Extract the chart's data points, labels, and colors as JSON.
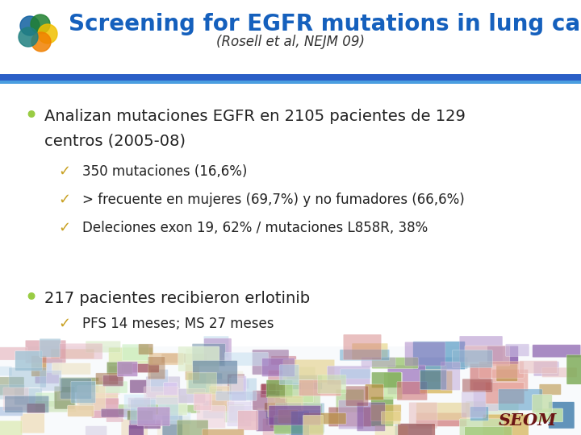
{
  "title": "Screening for EGFR mutations in lung cancer",
  "subtitle": "(Rosell et al, NEJM 09)",
  "title_color": "#1560BD",
  "subtitle_color": "#333333",
  "bg_color": "#FFFFFF",
  "separator_color": "#2B5FC7",
  "separator_color2": "#4A9EE0",
  "bullet_color": "#99CC44",
  "check_color": "#C8A020",
  "bullet1_line1": "Analizan mutaciones EGFR en 2105 pacientes de 129",
  "bullet1_line2": "centros (2005-08)",
  "sub1a": "350 mutaciones (16,6%)",
  "sub1b": "> frecuente en mujeres (69,7%) y no fumadores (66,6%)",
  "sub1c": "Deleciones exon 19, 62% / mutaciones L858R, 38%",
  "bullet2": "217 pacientes recibieron erlotinib",
  "sub2a": "PFS 14 meses; MS 27 meses",
  "text_color": "#222222",
  "font_size_title": 20,
  "font_size_subtitle": 12,
  "font_size_bullet": 14,
  "font_size_sub": 12,
  "seom_color": "#6B1515"
}
